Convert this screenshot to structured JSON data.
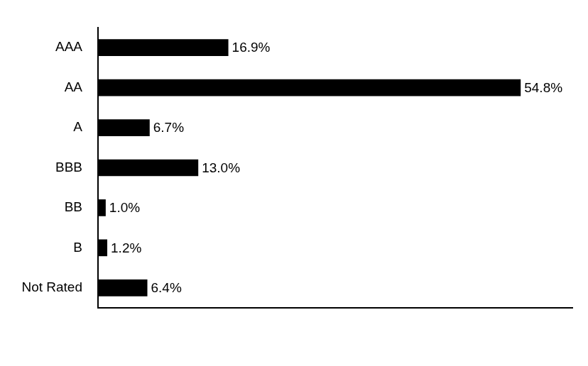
{
  "chart_data": {
    "type": "bar",
    "orientation": "horizontal",
    "categories": [
      "AAA",
      "AA",
      "A",
      "BBB",
      "BB",
      "B",
      "Not Rated"
    ],
    "values": [
      16.9,
      54.8,
      6.7,
      13.0,
      1.0,
      1.2,
      6.4
    ],
    "value_labels": [
      "16.9%",
      "54.8%",
      "6.7%",
      "13.0%",
      "1.0%",
      "1.2%",
      "6.4%"
    ],
    "color": "#000000",
    "xlim": [
      0,
      61.5
    ],
    "grid": false,
    "data_labels": true,
    "tick_labels": "y"
  }
}
